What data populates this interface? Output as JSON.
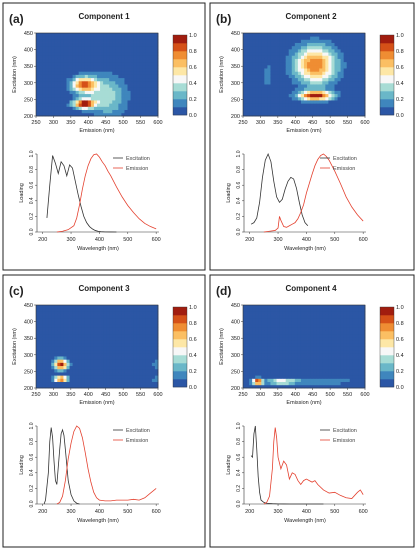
{
  "colors": {
    "excitation": "#333333",
    "emission": "#e4412f",
    "frame": "#222222",
    "background": "#ffffff"
  },
  "colorbar": {
    "ticks": [
      "0.0",
      "0.2",
      "0.4",
      "0.6",
      "0.8",
      "1.0"
    ],
    "stops": [
      "#2b56a5",
      "#3f86bd",
      "#6ab7c8",
      "#a7dcd5",
      "#f7f7f7",
      "#fde7a6",
      "#fbbf63",
      "#ef8d33",
      "#d55118",
      "#a11d0f"
    ]
  },
  "panels": [
    {
      "letter": "(a)",
      "title": "Component 1",
      "contour": {
        "xlabel": "Emission (nm)",
        "ylabel": "Excitation (nm)",
        "xticks": [
          "250",
          "300",
          "350",
          "400",
          "450",
          "500",
          "550",
          "600"
        ],
        "yticks": [
          "200",
          "250",
          "300",
          "350",
          "400",
          "450"
        ],
        "peaks": [
          {
            "em": 388,
            "ex": 238,
            "sx": 22,
            "sy": 10,
            "a": 0.95
          },
          {
            "em": 388,
            "ex": 295,
            "sx": 26,
            "sy": 17,
            "a": 0.8
          },
          {
            "em": 455,
            "ex": 260,
            "sx": 40,
            "sy": 45,
            "a": 0.35
          }
        ]
      },
      "line": {
        "xlabel": "Wavelength (nm)",
        "ylabel": "Loading",
        "xticks": [
          "200",
          "300",
          "400",
          "500",
          "600"
        ],
        "yticks": [
          "0.0",
          "0.2",
          "0.4",
          "0.6",
          "0.8",
          "1.0"
        ],
        "legend": [
          "Excitation",
          "Emission"
        ]
      }
    },
    {
      "letter": "(b)",
      "title": "Component 2",
      "contour": {
        "xlabel": "Emission (nm)",
        "ylabel": "Excitation (nm)",
        "xticks": [
          "250",
          "300",
          "350",
          "400",
          "450",
          "500",
          "550",
          "600"
        ],
        "yticks": [
          "200",
          "250",
          "300",
          "350",
          "400",
          "450"
        ],
        "peaks": [
          {
            "em": 458,
            "ex": 262,
            "sx": 34,
            "sy": 10,
            "a": 0.95
          },
          {
            "em": 458,
            "ex": 355,
            "sx": 42,
            "sy": 40,
            "a": 0.8
          },
          {
            "em": 320,
            "ex": 320,
            "sx": 6,
            "sy": 50,
            "a": 0.15
          }
        ]
      },
      "line": {
        "xlabel": "Wavelength (nm)",
        "ylabel": "Loading",
        "xticks": [
          "200",
          "300",
          "400",
          "500",
          "600"
        ],
        "yticks": [
          "0.0",
          "0.2",
          "0.4",
          "0.6",
          "0.8",
          "1.0"
        ],
        "legend": [
          "Excitation",
          "Emission"
        ]
      }
    },
    {
      "letter": "(c)",
      "title": "Component 3",
      "contour": {
        "xlabel": "Emission (nm)",
        "ylabel": "Excitation (nm)",
        "xticks": [
          "250",
          "300",
          "350",
          "400",
          "450",
          "500",
          "550",
          "600"
        ],
        "yticks": [
          "200",
          "250",
          "300",
          "350",
          "400",
          "450"
        ],
        "peaks": [
          {
            "em": 322,
            "ex": 272,
            "sx": 14,
            "sy": 12,
            "a": 0.95
          },
          {
            "em": 322,
            "ex": 228,
            "sx": 14,
            "sy": 6,
            "a": 0.95
          },
          {
            "em": 600,
            "ex": 272,
            "sx": 14,
            "sy": 12,
            "a": 0.2
          },
          {
            "em": 600,
            "ex": 228,
            "sx": 14,
            "sy": 6,
            "a": 0.2
          }
        ]
      },
      "line": {
        "xlabel": "Wavelength (nm)",
        "ylabel": "Loading",
        "xticks": [
          "200",
          "300",
          "400",
          "500",
          "600"
        ],
        "yticks": [
          "0.0",
          "0.2",
          "0.4",
          "0.6",
          "0.8",
          "1.0"
        ],
        "legend": [
          "Excitation",
          "Emission"
        ]
      }
    },
    {
      "letter": "(d)",
      "title": "Component 4",
      "contour": {
        "xlabel": "Emission (nm)",
        "ylabel": "Excitation (nm)",
        "xticks": [
          "250",
          "300",
          "350",
          "400",
          "450",
          "500",
          "550",
          "600"
        ],
        "yticks": [
          "200",
          "250",
          "300",
          "350",
          "400",
          "450"
        ],
        "peaks": [
          {
            "em": 292,
            "ex": 220,
            "sx": 10,
            "sy": 7,
            "a": 0.95
          },
          {
            "em": 360,
            "ex": 220,
            "sx": 30,
            "sy": 6,
            "a": 0.45
          },
          {
            "em": 470,
            "ex": 220,
            "sx": 80,
            "sy": 5,
            "a": 0.25
          }
        ]
      },
      "line": {
        "xlabel": "Wavelength (nm)",
        "ylabel": "Loading",
        "xticks": [
          "200",
          "300",
          "400",
          "500",
          "600"
        ],
        "yticks": [
          "0.0",
          "0.2",
          "0.4",
          "0.6",
          "0.8",
          "1.0"
        ],
        "legend": [
          "Excitation",
          "Emission"
        ]
      }
    }
  ],
  "chart_data": [
    {
      "type": "heatmap",
      "title": "Component 1",
      "xlabel": "Emission (nm)",
      "ylabel": "Excitation (nm)",
      "xlim": [
        250,
        600
      ],
      "ylim": [
        200,
        450
      ],
      "legend": "colorbar 0.0–1.0"
    },
    {
      "type": "line",
      "title": "",
      "xlabel": "Wavelength (nm)",
      "ylabel": "Loading",
      "xlim": [
        180,
        610
      ],
      "ylim": [
        0,
        1
      ],
      "series": [
        {
          "name": "Excitation",
          "x": [
            215,
            225,
            235,
            245,
            255,
            265,
            275,
            285,
            295,
            305,
            315,
            325,
            335,
            345,
            355,
            365,
            375,
            385,
            395,
            405,
            420,
            440,
            460
          ],
          "y": [
            0.18,
            0.6,
            0.98,
            0.88,
            0.75,
            0.9,
            0.85,
            0.72,
            0.86,
            0.82,
            0.65,
            0.48,
            0.33,
            0.2,
            0.12,
            0.07,
            0.04,
            0.02,
            0.01,
            0.005,
            0.002,
            0.001,
            0
          ]
        },
        {
          "name": "Emission",
          "x": [
            250,
            270,
            290,
            310,
            320,
            330,
            340,
            350,
            360,
            370,
            380,
            390,
            400,
            410,
            420,
            430,
            440,
            450,
            460,
            480,
            500,
            520,
            540,
            560,
            580,
            600
          ],
          "y": [
            0,
            0.01,
            0.03,
            0.08,
            0.18,
            0.35,
            0.55,
            0.72,
            0.85,
            0.94,
            0.99,
            1.0,
            0.96,
            0.9,
            0.85,
            0.78,
            0.72,
            0.65,
            0.58,
            0.45,
            0.34,
            0.25,
            0.17,
            0.11,
            0.07,
            0.04
          ]
        }
      ]
    },
    {
      "type": "heatmap",
      "title": "Component 2",
      "xlabel": "Emission (nm)",
      "ylabel": "Excitation (nm)",
      "xlim": [
        250,
        600
      ],
      "ylim": [
        200,
        450
      ],
      "legend": "colorbar 0.0–1.0"
    },
    {
      "type": "line",
      "title": "",
      "xlabel": "Wavelength (nm)",
      "ylabel": "Loading",
      "xlim": [
        180,
        610
      ],
      "ylim": [
        0,
        1
      ],
      "series": [
        {
          "name": "Excitation",
          "x": [
            205,
            215,
            225,
            235,
            245,
            255,
            265,
            275,
            285,
            295,
            305,
            315,
            325,
            335,
            345,
            355,
            365,
            375,
            385,
            395,
            405
          ],
          "y": [
            0.1,
            0.12,
            0.18,
            0.38,
            0.7,
            0.92,
            1.0,
            0.9,
            0.65,
            0.45,
            0.38,
            0.42,
            0.55,
            0.65,
            0.7,
            0.68,
            0.56,
            0.38,
            0.22,
            0.12,
            0.08
          ]
        },
        {
          "name": "Emission",
          "x": [
            250,
            270,
            290,
            300,
            305,
            310,
            320,
            330,
            340,
            350,
            360,
            370,
            380,
            390,
            400,
            410,
            420,
            430,
            440,
            450,
            460,
            470,
            480,
            490,
            500,
            520,
            540,
            560,
            580,
            600
          ],
          "y": [
            0,
            0.01,
            0.02,
            0.05,
            0.2,
            0.15,
            0.07,
            0.06,
            0.08,
            0.1,
            0.12,
            0.17,
            0.25,
            0.35,
            0.5,
            0.62,
            0.74,
            0.85,
            0.93,
            0.98,
            1.0,
            0.97,
            0.92,
            0.85,
            0.78,
            0.62,
            0.45,
            0.32,
            0.22,
            0.14
          ]
        }
      ]
    },
    {
      "type": "heatmap",
      "title": "Component 3",
      "xlabel": "Emission (nm)",
      "ylabel": "Excitation (nm)",
      "xlim": [
        250,
        600
      ],
      "ylim": [
        200,
        450
      ],
      "legend": "colorbar 0.0–1.0"
    },
    {
      "type": "line",
      "title": "",
      "xlabel": "Wavelength (nm)",
      "ylabel": "Loading",
      "xlim": [
        180,
        610
      ],
      "ylim": [
        0,
        1
      ],
      "series": [
        {
          "name": "Excitation",
          "x": [
            205,
            210,
            220,
            225,
            230,
            235,
            240,
            245,
            250,
            260,
            265,
            270,
            275,
            280,
            290,
            300,
            310,
            320,
            330
          ],
          "y": [
            0,
            0.05,
            0.4,
            0.8,
            0.98,
            0.85,
            0.55,
            0.3,
            0.25,
            0.7,
            0.9,
            0.95,
            0.88,
            0.7,
            0.3,
            0.12,
            0.04,
            0.01,
            0
          ]
        },
        {
          "name": "Emission",
          "x": [
            250,
            260,
            270,
            280,
            290,
            300,
            310,
            320,
            330,
            340,
            350,
            360,
            370,
            380,
            390,
            400,
            420,
            440,
            460,
            480,
            500,
            520,
            540,
            560,
            580,
            600
          ],
          "y": [
            0,
            0.02,
            0.1,
            0.3,
            0.58,
            0.78,
            0.93,
            1.0,
            0.97,
            0.85,
            0.66,
            0.45,
            0.28,
            0.15,
            0.08,
            0.05,
            0.04,
            0.04,
            0.05,
            0.05,
            0.05,
            0.06,
            0.05,
            0.08,
            0.14,
            0.2
          ]
        }
      ]
    },
    {
      "type": "heatmap",
      "title": "Component 4",
      "xlabel": "Emission (nm)",
      "ylabel": "Excitation (nm)",
      "xlim": [
        250,
        600
      ],
      "ylim": [
        200,
        450
      ],
      "legend": "colorbar 0.0–1.0"
    },
    {
      "type": "line",
      "title": "",
      "xlabel": "Wavelength (nm)",
      "ylabel": "Loading",
      "xlim": [
        180,
        610
      ],
      "ylim": [
        0,
        1
      ],
      "series": [
        {
          "name": "Excitation",
          "x": [
            205,
            210,
            215,
            220,
            225,
            230,
            235,
            240,
            250,
            260,
            280,
            300,
            320,
            340,
            360,
            380,
            400,
            420,
            440,
            460
          ],
          "y": [
            0.62,
            0.6,
            0.9,
            1.0,
            0.7,
            0.35,
            0.15,
            0.05,
            0.02,
            0.01,
            0.005,
            0.002,
            0.001,
            0,
            0,
            0,
            0,
            0,
            0,
            0
          ]
        },
        {
          "name": "Emission",
          "x": [
            250,
            260,
            270,
            280,
            285,
            290,
            295,
            300,
            310,
            320,
            330,
            340,
            350,
            360,
            370,
            380,
            390,
            400,
            410,
            420,
            430,
            440,
            460,
            480,
            500,
            520,
            540,
            560,
            580,
            590,
            600
          ],
          "y": [
            0,
            0.02,
            0.1,
            0.45,
            0.8,
            0.98,
            0.85,
            0.6,
            0.45,
            0.55,
            0.5,
            0.32,
            0.4,
            0.38,
            0.3,
            0.25,
            0.3,
            0.32,
            0.3,
            0.28,
            0.3,
            0.25,
            0.18,
            0.14,
            0.15,
            0.11,
            0.08,
            0.07,
            0.15,
            0.18,
            0.12
          ]
        }
      ]
    }
  ]
}
